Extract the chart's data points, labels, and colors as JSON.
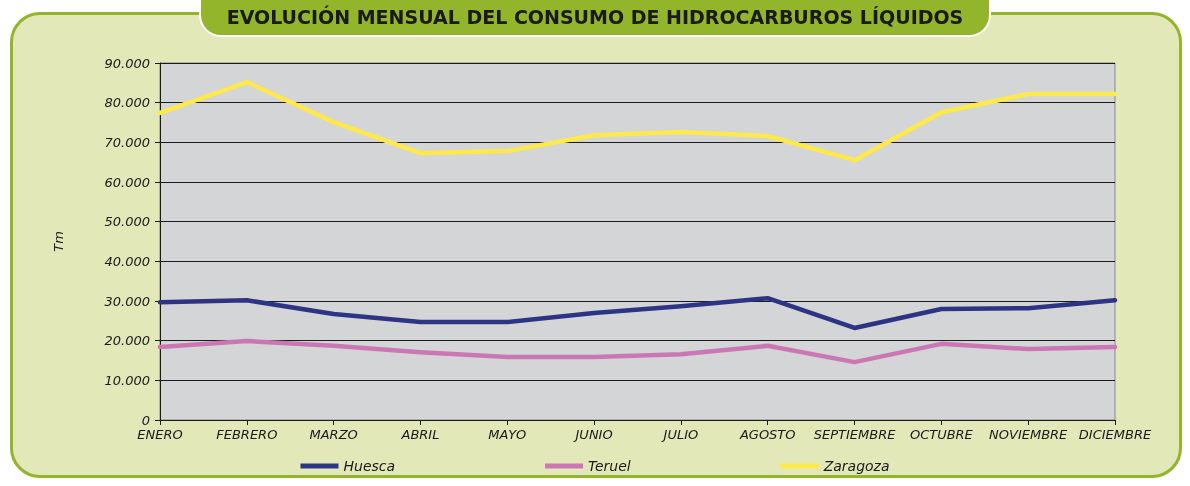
{
  "chart_data": {
    "type": "line",
    "title": "EVOLUCIÓN MENSUAL DEL CONSUMO DE HIDROCARBUROS LÍQUIDOS",
    "ylabel": "Tm",
    "categories": [
      "ENERO",
      "FEBRERO",
      "MARZO",
      "ABRIL",
      "MAYO",
      "JUNIO",
      "JULIO",
      "AGOSTO",
      "SEPTIEMBRE",
      "OCTUBRE",
      "NOVIEMBRE",
      "DICIEMBRE"
    ],
    "series": [
      {
        "name": "Huesca",
        "color": "#2e3484",
        "values": [
          29700,
          30200,
          26700,
          24700,
          24700,
          27000,
          28700,
          30700,
          23200,
          28000,
          28200,
          30200
        ]
      },
      {
        "name": "Teruel",
        "color": "#cc77b5",
        "values": [
          18400,
          19900,
          18700,
          17100,
          15900,
          15900,
          16600,
          18700,
          14600,
          19200,
          17900,
          18400
        ]
      },
      {
        "name": "Zaragoza",
        "color": "#fde94a",
        "values": [
          77400,
          85200,
          75100,
          67300,
          67800,
          71800,
          72600,
          71600,
          65500,
          77600,
          82200,
          82200
        ]
      }
    ],
    "ylim": [
      0,
      90000
    ],
    "yticks": [
      {
        "value": 0,
        "label": "0"
      },
      {
        "value": 10000,
        "label": "10.000"
      },
      {
        "value": 20000,
        "label": "20.000"
      },
      {
        "value": 30000,
        "label": "30.000"
      },
      {
        "value": 40000,
        "label": "40.000"
      },
      {
        "value": 50000,
        "label": "50.000"
      },
      {
        "value": 60000,
        "label": "60.000"
      },
      {
        "value": 70000,
        "label": "70.000"
      },
      {
        "value": 80000,
        "label": "80.000"
      },
      {
        "value": 90000,
        "label": "90.000"
      }
    ],
    "grid": "y",
    "legend": "bottom",
    "marker": "none",
    "line_style": "solid"
  }
}
